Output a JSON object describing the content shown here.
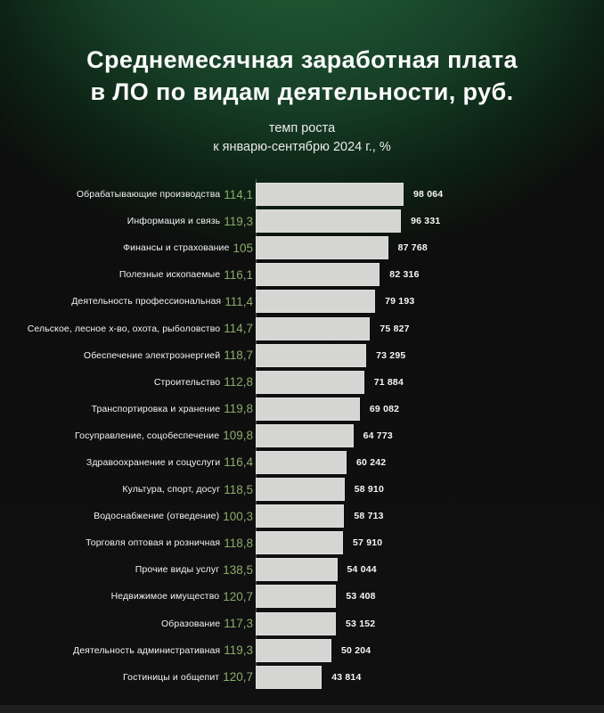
{
  "header": {
    "title_line1": "Среднемесячная заработная плата",
    "title_line2": "в ЛО по видам деятельности, руб.",
    "subtitle_line1": "темп роста",
    "subtitle_line2": "к январю-сентябрю 2024 г., %"
  },
  "colors": {
    "background_green": "#1f5330",
    "background_black": "#0f0f0f",
    "bar_fill": "#d5d6d3",
    "rate_green": "#8cab6d",
    "text_white": "#f3f3f3"
  },
  "chart_data": {
    "type": "bar",
    "orientation": "horizontal",
    "title": "Среднемесячная заработная плата в ЛО по видам деятельности, руб.",
    "subtitle": "темп роста к январю-сентябрю 2024 г., %",
    "value_unit": "руб.",
    "rate_unit": "%",
    "xlim": [
      0,
      98064
    ],
    "grid": false,
    "legend": false,
    "rows": [
      {
        "category": "Обрабатывающие производства",
        "rate": "114,1",
        "value": 98064,
        "value_label": "98 064"
      },
      {
        "category": "Информация и связь",
        "rate": "119,3",
        "value": 96331,
        "value_label": "96 331"
      },
      {
        "category": "Финансы и страхование",
        "rate": "105",
        "value": 87768,
        "value_label": "87 768"
      },
      {
        "category": "Полезные ископаемые",
        "rate": "116,1",
        "value": 82316,
        "value_label": "82 316"
      },
      {
        "category": "Деятельность профессиональная",
        "rate": "111,4",
        "value": 79193,
        "value_label": "79 193"
      },
      {
        "category": "Сельское, лесное х-во, охота, рыболовство",
        "rate": "114,7",
        "value": 75827,
        "value_label": "75 827"
      },
      {
        "category": "Обеспечение электроэнергией",
        "rate": "118,7",
        "value": 73295,
        "value_label": "73 295"
      },
      {
        "category": "Строительство",
        "rate": "112,8",
        "value": 71884,
        "value_label": "71 884"
      },
      {
        "category": "Транспортировка и хранение",
        "rate": "119,8",
        "value": 69082,
        "value_label": "69 082"
      },
      {
        "category": "Госуправление, соцобеспечение",
        "rate": "109,8",
        "value": 64773,
        "value_label": "64 773"
      },
      {
        "category": "Здравоохранение и соцуслуги",
        "rate": "116,4",
        "value": 60242,
        "value_label": "60 242"
      },
      {
        "category": "Культура, спорт, досуг",
        "rate": "118,5",
        "value": 58910,
        "value_label": "58 910"
      },
      {
        "category": "Водоснабжение (отведение)",
        "rate": "100,3",
        "value": 58713,
        "value_label": "58 713"
      },
      {
        "category": "Торговля оптовая и розничная",
        "rate": "118,8",
        "value": 57910,
        "value_label": "57 910"
      },
      {
        "category": "Прочие виды услуг",
        "rate": "138,5",
        "value": 54044,
        "value_label": "54 044"
      },
      {
        "category": "Недвижимое имущество",
        "rate": "120,7",
        "value": 53408,
        "value_label": "53 408"
      },
      {
        "category": "Образование",
        "rate": "117,3",
        "value": 53152,
        "value_label": "53 152"
      },
      {
        "category": "Деятельность административная",
        "rate": "119,3",
        "value": 50204,
        "value_label": "50 204"
      },
      {
        "category": "Гостиницы и общепит",
        "rate": "120,7",
        "value": 43814,
        "value_label": "43 814"
      }
    ]
  }
}
